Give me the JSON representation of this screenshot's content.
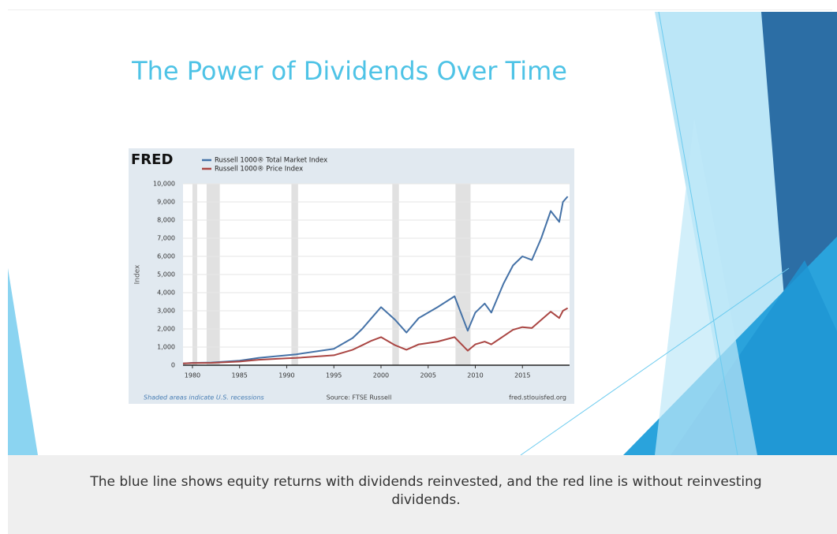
{
  "title": "The Power of Dividends Over Time",
  "caption": "The blue line shows equity returns with dividends reinvested, and the red line is without reinvesting dividends.",
  "chart_data": {
    "type": "line",
    "logo": "FRED",
    "ylabel": "Index",
    "note": "Shaded areas indicate U.S. recessions",
    "source": "Source: FTSE Russell",
    "site": "fred.stlouisfed.org",
    "x": [
      1979,
      1980,
      1982,
      1985,
      1987,
      1990,
      1991,
      1995,
      1997,
      1998,
      1999,
      2000,
      2001.5,
      2002.7,
      2004,
      2006,
      2007.8,
      2009.2,
      2010,
      2011,
      2011.7,
      2013,
      2014,
      2015,
      2016,
      2017,
      2018,
      2018.9,
      2019.3,
      2019.8
    ],
    "series": [
      {
        "name": "Russell 1000® Total Market Index",
        "color": "#4572a7",
        "values": [
          100,
          130,
          150,
          250,
          400,
          550,
          600,
          900,
          1500,
          2000,
          2600,
          3200,
          2500,
          1800,
          2600,
          3200,
          3800,
          1900,
          2900,
          3400,
          2900,
          4500,
          5500,
          6000,
          5800,
          7000,
          8500,
          7900,
          9000,
          9300
        ]
      },
      {
        "name": "Russell 1000® Price Index",
        "color": "#aa4643",
        "values": [
          100,
          120,
          130,
          200,
          300,
          380,
          400,
          550,
          850,
          1100,
          1350,
          1550,
          1100,
          850,
          1150,
          1300,
          1550,
          800,
          1150,
          1300,
          1150,
          1600,
          1950,
          2100,
          2050,
          2500,
          2950,
          2600,
          3000,
          3150
        ]
      }
    ],
    "recessions": [
      [
        1980.0,
        1980.5
      ],
      [
        1981.5,
        1982.9
      ],
      [
        1990.5,
        1991.2
      ],
      [
        2001.2,
        2001.9
      ],
      [
        2007.9,
        2009.5
      ]
    ],
    "xlim": [
      1979,
      2020
    ],
    "xticks": [
      1980,
      1985,
      1990,
      1995,
      2000,
      2005,
      2010,
      2015
    ],
    "ylim": [
      0,
      10000
    ],
    "yticks": [
      0,
      {
        "value": 1000,
        "label": "1,000"
      },
      {
        "value": 2000,
        "label": "2,000"
      },
      {
        "value": 3000,
        "label": "3,000"
      },
      {
        "value": 4000,
        "label": "4,000"
      },
      {
        "value": 5000,
        "label": "5,000"
      },
      {
        "value": 6000,
        "label": "6,000"
      },
      {
        "value": 7000,
        "label": "7,000"
      },
      {
        "value": 8000,
        "label": "8,000"
      },
      {
        "value": 9000,
        "label": "9,000"
      },
      {
        "value": 10000,
        "label": "10,000"
      }
    ],
    "grid": true
  }
}
